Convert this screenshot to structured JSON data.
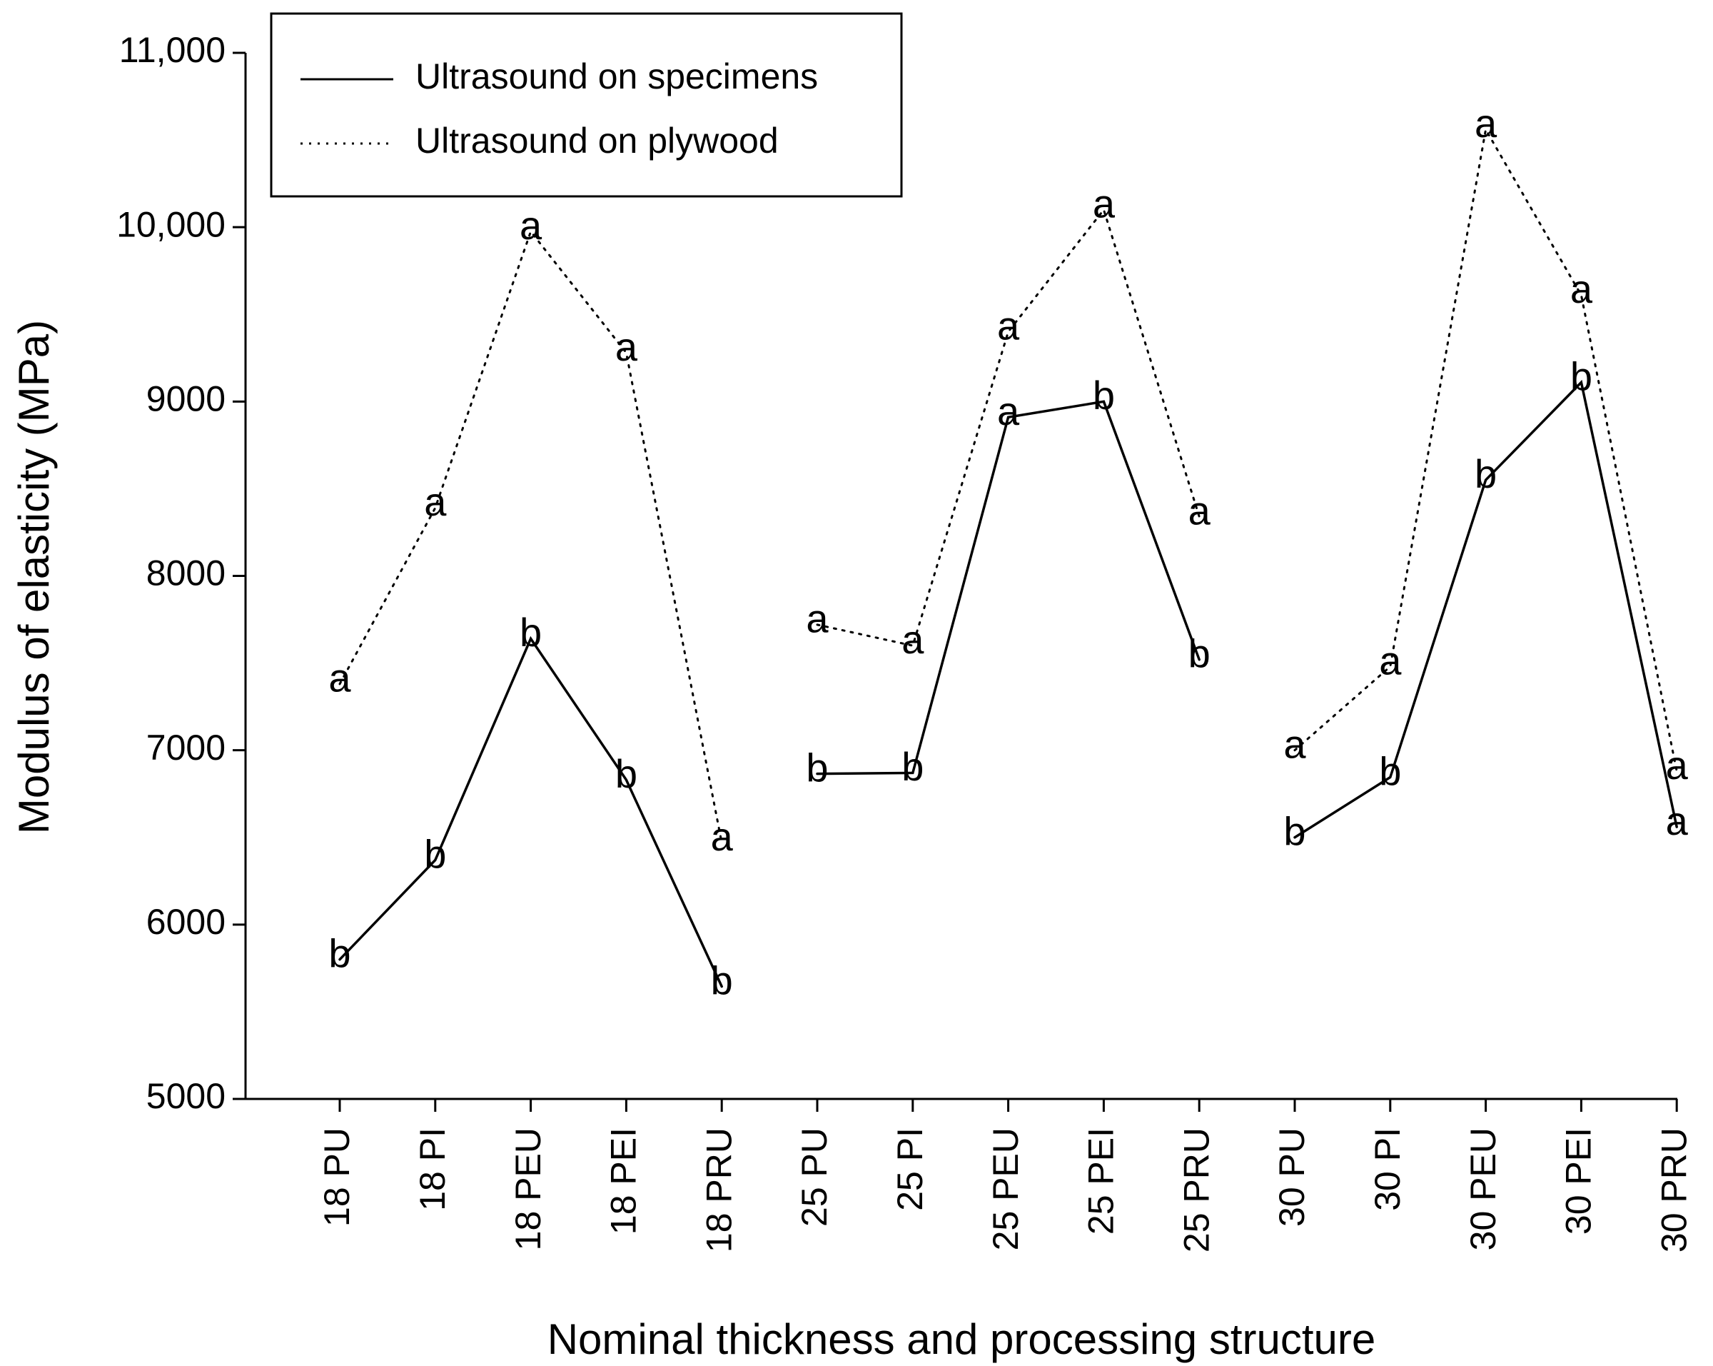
{
  "chart_data": {
    "type": "line",
    "x_label": "Nominal thickness and processing structure",
    "y_label": "Modulus of elasticity (MPa)",
    "categories": [
      "18 PU",
      "18 PI",
      "18 PEU",
      "18 PEI",
      "18 PRU",
      "25 PU",
      "25 PI",
      "25 PEU",
      "25 PEI",
      "25 PRU",
      "30 PU",
      "30 PI",
      "30 PEU",
      "30 PEI",
      "30 PRU"
    ],
    "group_size": 5,
    "series": [
      {
        "name": "Ultrasound on specimens",
        "color": "#000000",
        "dash": "solid",
        "values": [
          5800,
          6370,
          7640,
          6830,
          5645,
          6865,
          6870,
          8910,
          9000,
          7520,
          6500,
          6845,
          8550,
          9110,
          6560
        ],
        "annotations": [
          "b",
          "b",
          "b",
          "b",
          "b",
          "b",
          "b",
          "a",
          "b",
          "b",
          "b",
          "b",
          "b",
          "b",
          "a"
        ]
      },
      {
        "name": "Ultrasound on plywood",
        "color": "#000000",
        "dash": "dotted",
        "values": [
          7380,
          8390,
          9975,
          9280,
          6470,
          7720,
          7600,
          9400,
          10100,
          8340,
          7000,
          7480,
          10560,
          9610,
          6880
        ],
        "annotations": [
          "a",
          "a",
          "a",
          "a",
          "a",
          "a",
          "a",
          "a",
          "a",
          "a",
          "a",
          "a",
          "a",
          "a",
          "a"
        ]
      }
    ],
    "ylim": [
      5000,
      11000
    ],
    "yticks": [
      5000,
      6000,
      7000,
      8000,
      9000,
      {
        "value": 10000,
        "label": "10,000"
      },
      {
        "value": 11000,
        "label": "11,000"
      }
    ],
    "grid": false,
    "legend": "top-left"
  }
}
